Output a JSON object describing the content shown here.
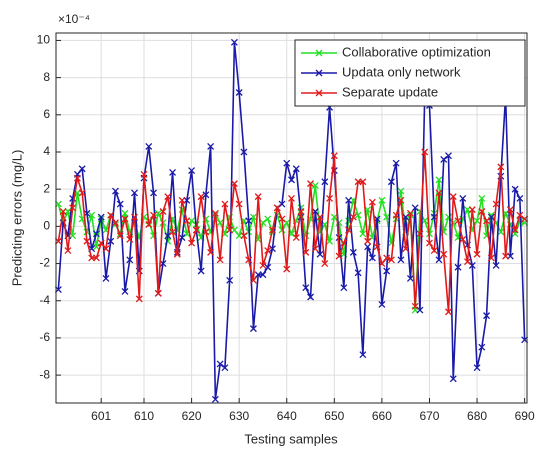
{
  "chart_data": {
    "type": "line",
    "y_exponent_label": "×10⁻⁴",
    "xlabel": "Testing samples",
    "ylabel": "Predicting errors (mg/L)",
    "x": [
      592,
      593,
      594,
      595,
      596,
      597,
      598,
      599,
      600,
      601,
      602,
      603,
      604,
      605,
      606,
      607,
      608,
      609,
      610,
      611,
      612,
      613,
      614,
      615,
      616,
      617,
      618,
      619,
      620,
      621,
      622,
      623,
      624,
      625,
      626,
      627,
      628,
      629,
      630,
      631,
      632,
      633,
      634,
      635,
      636,
      637,
      638,
      639,
      640,
      641,
      642,
      643,
      644,
      645,
      646,
      647,
      648,
      649,
      650,
      651,
      652,
      653,
      654,
      655,
      656,
      657,
      658,
      659,
      660,
      661,
      662,
      663,
      664,
      665,
      666,
      667,
      668,
      669,
      670,
      671,
      672,
      673,
      674,
      675,
      676,
      677,
      678,
      679,
      680,
      681,
      682,
      683,
      684,
      685,
      686,
      687,
      688,
      689,
      690
    ],
    "series": [
      {
        "name": "Collaborative optimization",
        "color": "#22e022",
        "values": [
          1.2,
          0.2,
          0.8,
          -0.5,
          1.8,
          0.4,
          -0.3,
          0.6,
          -1.1,
          0.4,
          -0.2,
          0.6,
          0.1,
          -0.4,
          0.7,
          -0.3,
          0.2,
          -0.6,
          0.5,
          0.3,
          -0.5,
          0.7,
          0.2,
          -0.8,
          0.4,
          -0.2,
          0.9,
          -0.4,
          0.3,
          0.1,
          -0.6,
          0.4,
          -0.3,
          0.6,
          0.2,
          -0.4,
          0.5,
          -0.2,
          -0.5,
          0.3,
          -0.3,
          0.5,
          -0.7,
          0.2,
          0.4,
          -0.3,
          0.6,
          -0.2,
          0.2,
          -0.4,
          0.3,
          1.0,
          -0.5,
          0.4,
          2.2,
          -0.3,
          0.1,
          -0.8,
          0.5,
          0.2,
          -1.5,
          0.3,
          1.4,
          0.6,
          -0.4,
          0.9,
          -0.6,
          0.3,
          1.4,
          0.5,
          -0.9,
          0.4,
          1.9,
          -0.3,
          0.6,
          -4.5,
          0.8,
          0.3,
          -0.4,
          0.7,
          2.5,
          -0.3,
          0.5,
          0.2,
          -0.6,
          0.4,
          0.9,
          -0.2,
          0.3,
          1.5,
          -0.5,
          0.6,
          0.2,
          -0.3,
          0.7,
          0.1,
          -0.4,
          0.3,
          0.2
        ]
      },
      {
        "name": "Updata only network",
        "color": "#1a1aa8",
        "values": [
          -3.4,
          0.2,
          -0.5,
          1.5,
          2.8,
          3.1,
          0.7,
          -1.2,
          -0.4,
          0.5,
          -2.8,
          -0.8,
          1.9,
          1.2,
          -3.5,
          -1.8,
          1.8,
          -2.4,
          2.6,
          4.3,
          1.8,
          -3.6,
          -2.0,
          -0.5,
          2.9,
          -1.4,
          -0.6,
          1.4,
          3.0,
          -0.2,
          -2.4,
          1.7,
          4.3,
          -9.3,
          -7.4,
          -7.6,
          -2.9,
          9.9,
          7.2,
          4.0,
          0.3,
          -5.5,
          -2.6,
          -2.6,
          -2.2,
          -1.2,
          1.0,
          1.2,
          3.4,
          2.5,
          3.1,
          0.5,
          -3.3,
          -3.8,
          0.8,
          -1.5,
          2.4,
          6.4,
          3.0,
          -0.6,
          -3.3,
          1.4,
          -1.4,
          -2.5,
          -6.9,
          -1.1,
          -1.7,
          0.4,
          -4.2,
          -2.4,
          2.4,
          3.4,
          -1.8,
          0.5,
          -2.8,
          1.0,
          -4.5,
          7.0,
          6.5,
          0.5,
          -1.8,
          3.6,
          3.8,
          -8.2,
          -2.2,
          1.5,
          -1.0,
          -2.1,
          -7.6,
          -6.5,
          -4.8,
          0.5,
          -2.1,
          2.7,
          7.0,
          -1.6,
          2.0,
          1.5,
          -6.1
        ]
      },
      {
        "name": "Separate update",
        "color": "#e01a1a",
        "values": [
          -0.8,
          0.8,
          -1.3,
          1.0,
          2.6,
          1.8,
          -0.8,
          -1.7,
          -1.7,
          -0.9,
          -1.2,
          0.6,
          0.2,
          -0.5,
          0.4,
          -0.7,
          0.5,
          -3.9,
          2.8,
          0.1,
          0.6,
          -3.6,
          0.8,
          1.6,
          -0.3,
          -1.5,
          1.4,
          0.3,
          -0.9,
          -0.2,
          1.6,
          -0.3,
          -1.4,
          0.7,
          -1.8,
          1.2,
          -0.2,
          2.3,
          1.2,
          -0.5,
          -1.8,
          -2.9,
          1.6,
          -2.1,
          -1.3,
          -0.2,
          1.0,
          0.4,
          -2.3,
          1.5,
          -0.6,
          0.8,
          -1.4,
          2.3,
          -1.2,
          0.5,
          -2.0,
          1.5,
          3.8,
          -1.6,
          -0.9,
          -0.2,
          0.5,
          2.4,
          2.4,
          -0.8,
          1.3,
          -1.1,
          -2.0,
          -1.7,
          -1.8,
          0.6,
          1.4,
          -1.2,
          0.7,
          -4.3,
          -0.4,
          4.0,
          -0.9,
          -1.3,
          1.8,
          -1.5,
          -4.6,
          1.6,
          0.3,
          -0.7,
          -1.9,
          0.9,
          -1.5,
          0.8,
          0.3,
          -1.7,
          1.2,
          3.2,
          -1.6,
          0.9,
          -0.2,
          0.6,
          0.4
        ]
      }
    ],
    "xlim": [
      591.5,
      690.5
    ],
    "xticks": [
      601,
      610,
      620,
      630,
      640,
      650,
      660,
      670,
      680,
      690
    ],
    "ylim": [
      -9.5,
      10.4
    ],
    "yticks": [
      -8,
      -6,
      -4,
      -2,
      0,
      2,
      4,
      6,
      8,
      10
    ],
    "grid": true,
    "legend": "top-right"
  }
}
